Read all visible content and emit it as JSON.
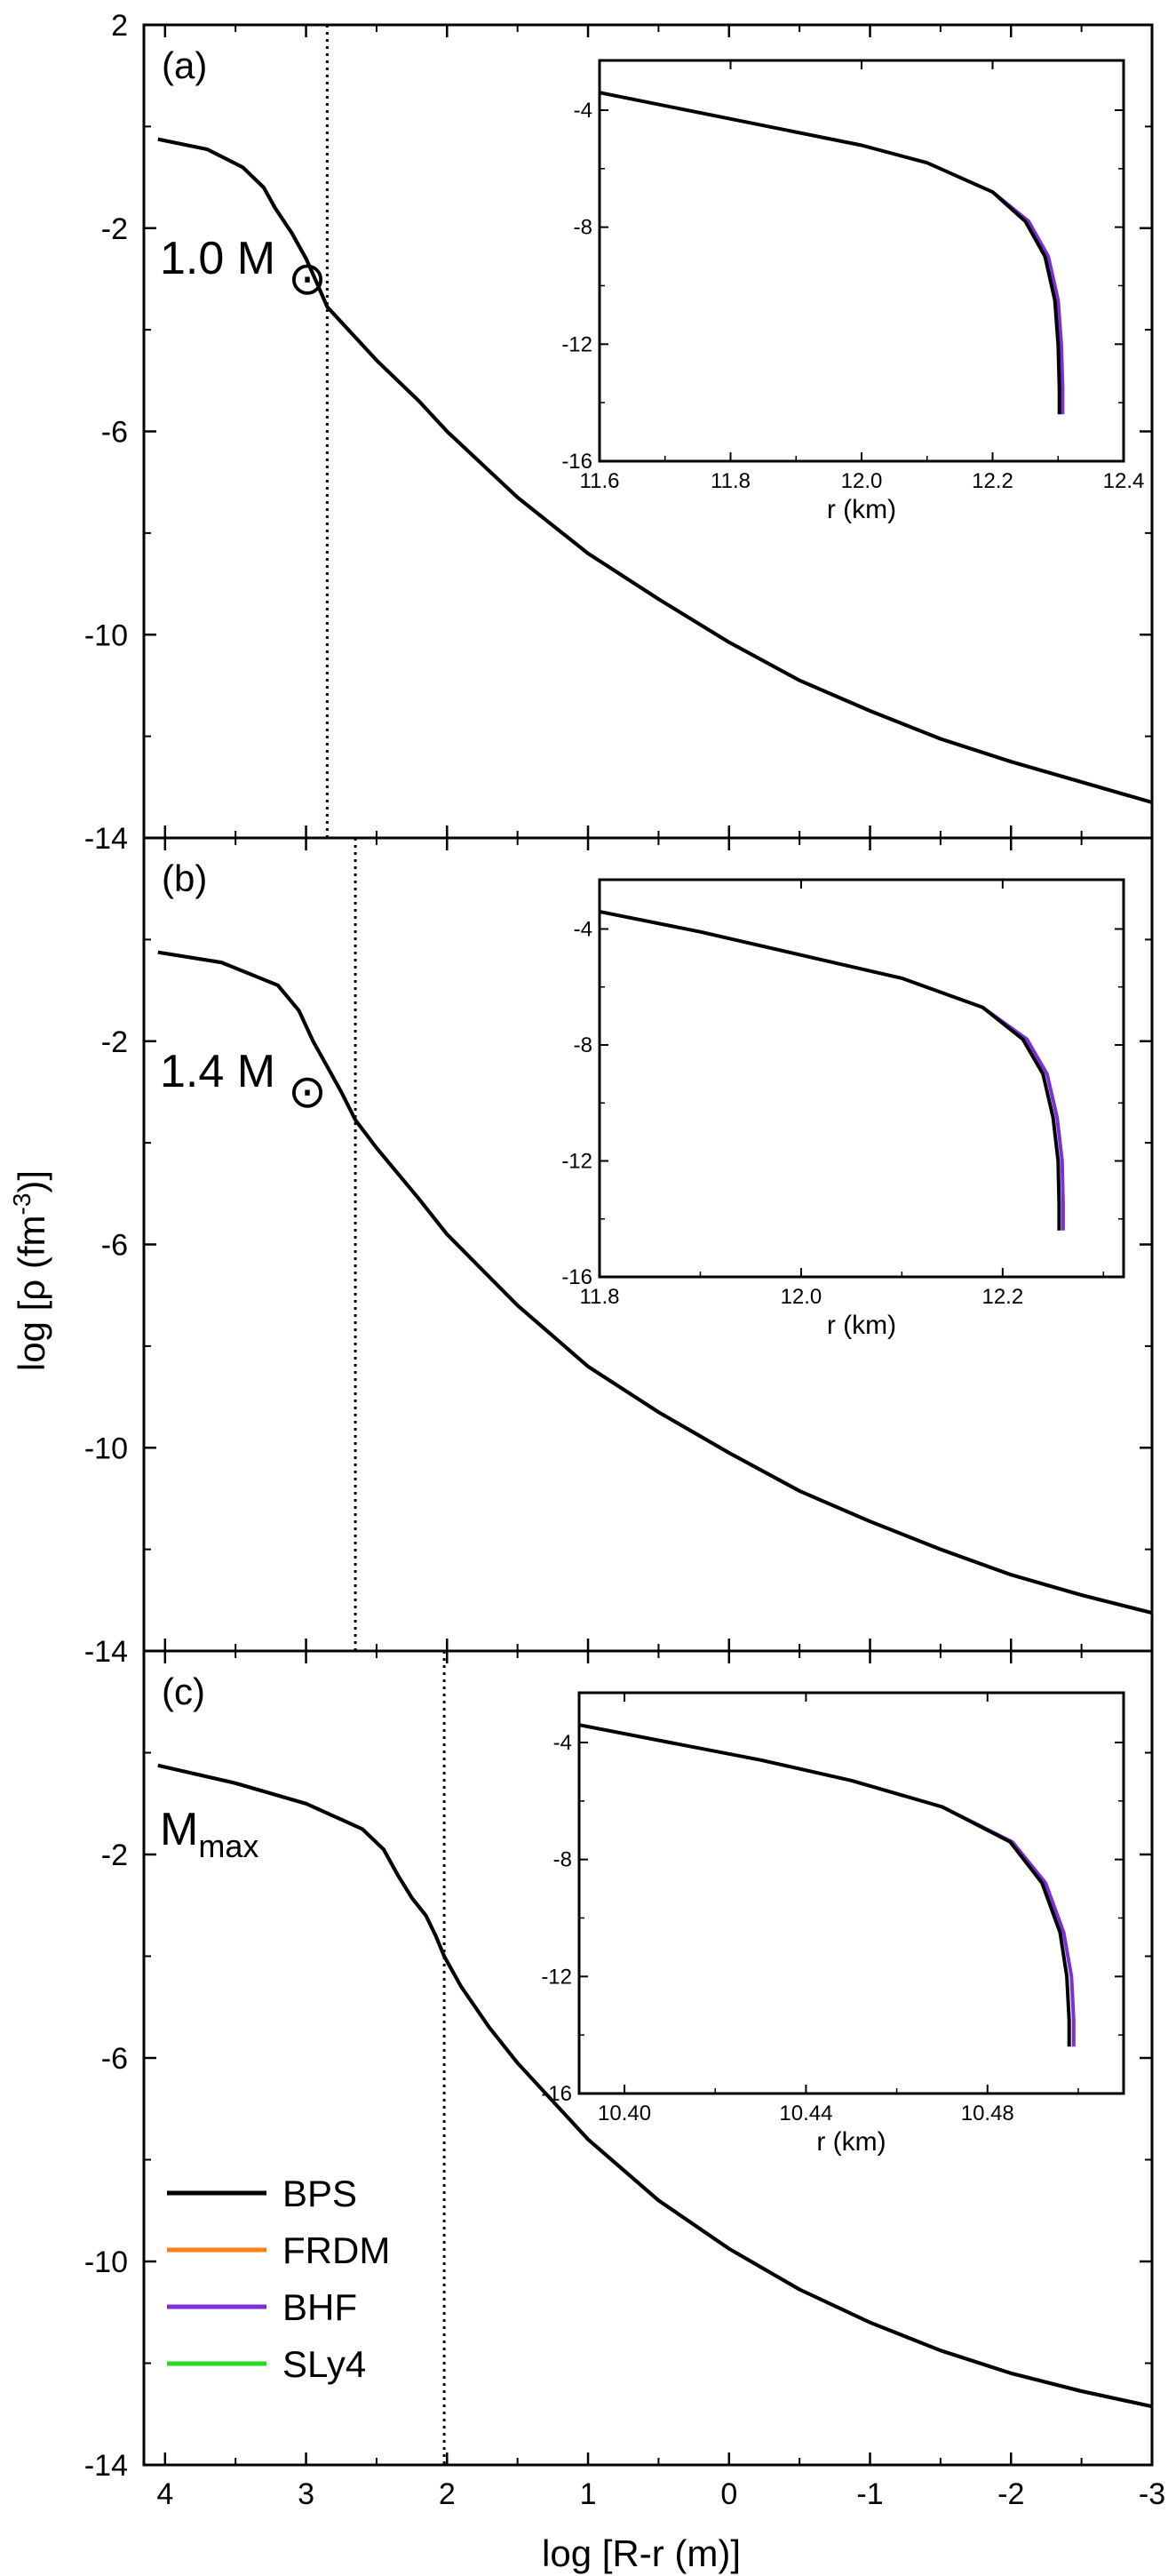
{
  "figure": {
    "ylabel_prefix": "log [ρ (fm",
    "ylabel_sup": "-3",
    "ylabel_suffix": ")]",
    "xlabel": "log [R-r (m)]",
    "x_ticks": [
      4,
      3,
      2,
      1,
      0,
      -1,
      -2,
      -3
    ],
    "x_tick_labels": [
      "4",
      "3",
      "2",
      "1",
      "0",
      "-1",
      "-2",
      "-3"
    ],
    "xlim": [
      4.15,
      -3.0
    ],
    "y_ticks": [
      2,
      -2,
      -6,
      -10,
      -14
    ],
    "y_tick_labels": [
      "2",
      "-2",
      "-6",
      "-10",
      "-14"
    ],
    "panel_y_labels": [
      [
        "2",
        "-2",
        "-6",
        "-10",
        "-14"
      ],
      [
        "-2",
        "-6",
        "-10",
        "-14"
      ],
      [
        "-2",
        "-6",
        "-10",
        "-14"
      ]
    ],
    "ylim": [
      -14,
      2
    ]
  },
  "legend": [
    {
      "name": "BPS",
      "color": "#000000"
    },
    {
      "name": "FRDM",
      "color": "#ff7f0e"
    },
    {
      "name": "BHF",
      "color": "#7b2fd6"
    },
    {
      "name": "SLy4",
      "color": "#22dd22"
    }
  ],
  "chart_data": [
    {
      "type": "line",
      "panel": "(a)",
      "mass_label": "1.0 M",
      "mass_symbol": "⊙",
      "crust_core_x": 2.85,
      "series": [
        {
          "name": "BPS",
          "x": [
            4.05,
            3.7,
            3.45,
            3.3,
            3.22,
            3.1,
            3.0,
            2.92,
            2.85,
            2.7,
            2.5,
            2.2,
            2.0,
            1.5,
            1.0,
            0.5,
            0.0,
            -0.5,
            -1.0,
            -1.5,
            -2.0,
            -2.5,
            -3.0
          ],
          "y": [
            -0.25,
            -0.45,
            -0.8,
            -1.2,
            -1.6,
            -2.1,
            -2.6,
            -3.1,
            -3.55,
            -4.0,
            -4.6,
            -5.4,
            -6.0,
            -7.3,
            -8.4,
            -9.3,
            -10.15,
            -10.9,
            -11.5,
            -12.05,
            -12.5,
            -12.9,
            -13.3
          ]
        }
      ],
      "inset": {
        "xlabel": "r (km)",
        "x_ticks": [
          11.6,
          11.8,
          12.0,
          12.2,
          12.4
        ],
        "x_tick_labels": [
          "11.6",
          "11.8",
          "12.0",
          "12.2",
          "12.4"
        ],
        "xlim": [
          11.6,
          12.4
        ],
        "y_ticks": [
          -4,
          -8,
          -12,
          -16
        ],
        "y_tick_labels": [
          "-4",
          "-8",
          "-12",
          "-16"
        ],
        "ylim": [
          -16,
          -2.3
        ],
        "series": [
          {
            "name": "BPS",
            "x": [
              11.6,
              11.8,
              12.0,
              12.1,
              12.2,
              12.25,
              12.28,
              12.295,
              12.3,
              12.302,
              12.302
            ],
            "y": [
              -3.4,
              -4.3,
              -5.2,
              -5.8,
              -6.8,
              -7.8,
              -9.0,
              -10.5,
              -12.0,
              -13.5,
              -14.4
            ]
          },
          {
            "name": "BHF",
            "x": [
              12.2,
              12.255,
              12.285,
              12.3,
              12.305,
              12.307,
              12.307
            ],
            "y": [
              -6.8,
              -7.8,
              -9.0,
              -10.5,
              -12.0,
              -13.5,
              -14.4
            ]
          }
        ]
      }
    },
    {
      "type": "line",
      "panel": "(b)",
      "mass_label": "1.4 M",
      "mass_symbol": "⊙",
      "crust_core_x": 2.65,
      "series": [
        {
          "name": "BPS",
          "x": [
            4.05,
            3.6,
            3.2,
            3.05,
            2.95,
            2.85,
            2.75,
            2.65,
            2.5,
            2.2,
            2.0,
            1.5,
            1.0,
            0.5,
            0.0,
            -0.5,
            -1.0,
            -1.5,
            -2.0,
            -2.5,
            -3.0
          ],
          "y": [
            -0.25,
            -0.45,
            -0.9,
            -1.4,
            -2.0,
            -2.5,
            -3.0,
            -3.55,
            -4.1,
            -5.1,
            -5.8,
            -7.2,
            -8.4,
            -9.3,
            -10.1,
            -10.85,
            -11.45,
            -12.0,
            -12.5,
            -12.9,
            -13.25
          ]
        }
      ],
      "inset": {
        "xlabel": "r (km)",
        "x_ticks": [
          11.8,
          12.0,
          12.2
        ],
        "x_tick_labels": [
          "11.8",
          "12.0",
          "12.2"
        ],
        "xlim": [
          11.8,
          12.32
        ],
        "y_ticks": [
          -4,
          -8,
          -12,
          -16
        ],
        "y_tick_labels": [
          "-4",
          "-8",
          "-12",
          "-16"
        ],
        "ylim": [
          -16,
          -2.3
        ],
        "series": [
          {
            "name": "BPS",
            "x": [
              11.8,
              11.9,
              12.0,
              12.1,
              12.18,
              12.22,
              12.24,
              12.25,
              12.255,
              12.256,
              12.256
            ],
            "y": [
              -3.4,
              -4.1,
              -4.9,
              -5.7,
              -6.7,
              -7.8,
              -9.0,
              -10.5,
              -12.0,
              -13.5,
              -14.4
            ]
          },
          {
            "name": "BHF",
            "x": [
              12.18,
              12.224,
              12.244,
              12.254,
              12.259,
              12.26,
              12.26
            ],
            "y": [
              -6.7,
              -7.8,
              -9.0,
              -10.5,
              -12.0,
              -13.5,
              -14.4
            ]
          }
        ]
      }
    },
    {
      "type": "line",
      "panel": "(c)",
      "mass_label": "M",
      "mass_sub": "max",
      "crust_core_x": 2.02,
      "series": [
        {
          "name": "BPS",
          "x": [
            4.05,
            3.5,
            3.0,
            2.6,
            2.45,
            2.35,
            2.25,
            2.15,
            2.08,
            2.02,
            1.9,
            1.7,
            1.5,
            1.0,
            0.5,
            0.0,
            -0.5,
            -1.0,
            -1.5,
            -2.0,
            -2.5,
            -3.0
          ],
          "y": [
            -0.25,
            -0.6,
            -1.0,
            -1.5,
            -1.9,
            -2.4,
            -2.85,
            -3.2,
            -3.6,
            -4.0,
            -4.6,
            -5.4,
            -6.1,
            -7.6,
            -8.8,
            -9.75,
            -10.55,
            -11.2,
            -11.75,
            -12.2,
            -12.55,
            -12.85
          ]
        }
      ],
      "inset": {
        "xlabel": "r (km)",
        "x_ticks": [
          10.4,
          10.44,
          10.48
        ],
        "x_tick_labels": [
          "10.40",
          "10.44",
          "10.48"
        ],
        "xlim": [
          10.39,
          10.51
        ],
        "y_ticks": [
          -4,
          -8,
          -12,
          -16
        ],
        "y_tick_labels": [
          "-4",
          "-8",
          "-12",
          "-16"
        ],
        "ylim": [
          -16,
          -2.3
        ],
        "series": [
          {
            "name": "BPS",
            "x": [
              10.39,
              10.41,
              10.43,
              10.45,
              10.47,
              10.485,
              10.492,
              10.496,
              10.4975,
              10.498,
              10.498
            ],
            "y": [
              -3.4,
              -4.0,
              -4.6,
              -5.3,
              -6.2,
              -7.4,
              -8.8,
              -10.5,
              -12.0,
              -13.5,
              -14.4
            ]
          },
          {
            "name": "BHF",
            "x": [
              10.47,
              10.4855,
              10.4928,
              10.4968,
              10.4985,
              10.499,
              10.499
            ],
            "y": [
              -6.2,
              -7.4,
              -8.8,
              -10.5,
              -12.0,
              -13.5,
              -14.4
            ]
          }
        ]
      }
    }
  ]
}
